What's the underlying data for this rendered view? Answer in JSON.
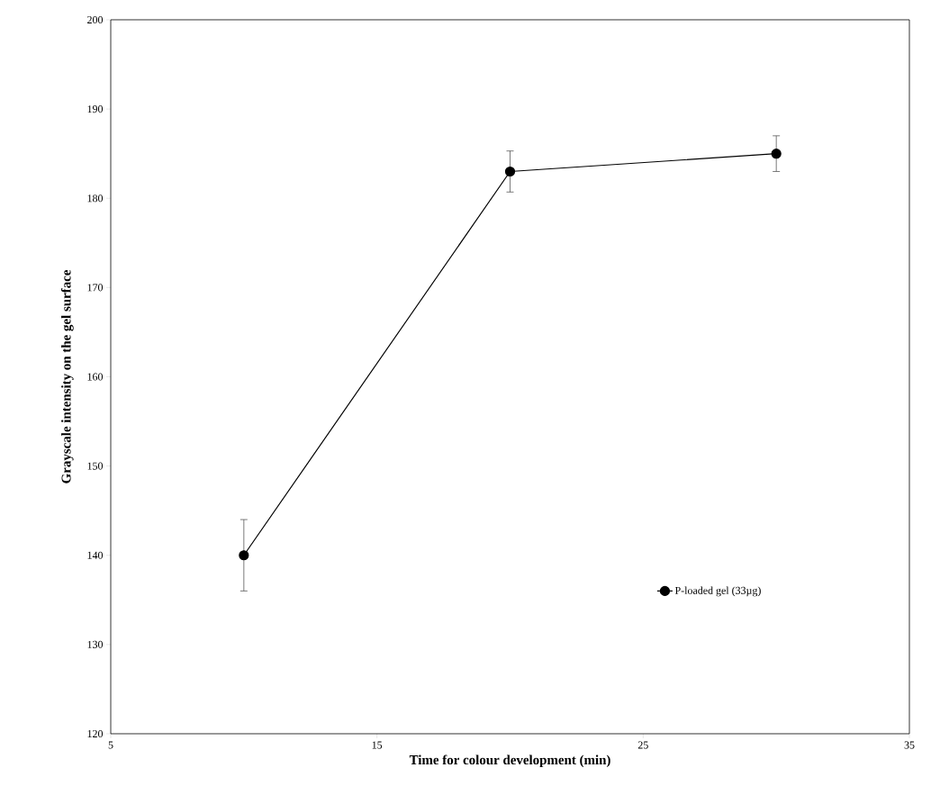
{
  "chart_data": {
    "type": "line",
    "xlabel": "Time for colour development (min)",
    "ylabel": "Grayscale intensity on the gel surface",
    "x": [
      10,
      20,
      30
    ],
    "series": [
      {
        "name": "P-loaded gel (33µg)",
        "color": "#000000",
        "values": [
          140,
          183,
          185
        ],
        "errors": [
          4,
          2.3,
          2
        ]
      }
    ],
    "xlim": [
      5,
      35
    ],
    "xticks": [
      5,
      15,
      25,
      35
    ],
    "ylim": [
      120,
      200
    ],
    "yticks": [
      120,
      130,
      140,
      150,
      160,
      170,
      180,
      190,
      200
    ],
    "grid": false,
    "legend": "bottom right",
    "marker": "circle",
    "line_style": "solid"
  }
}
